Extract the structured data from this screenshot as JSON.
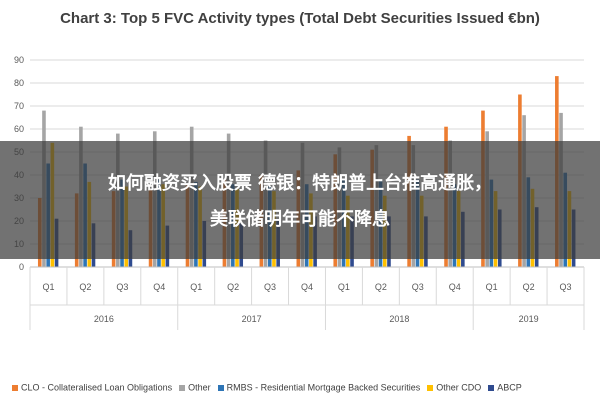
{
  "chart_data": {
    "type": "bar",
    "title": "Chart 3: Top 5 FVC Activity types (Total Debt Securities Issued €bn)",
    "xlabel": "",
    "ylabel": "",
    "ylim": [
      0,
      90
    ],
    "yticks": [
      0,
      10,
      20,
      30,
      40,
      50,
      60,
      70,
      80,
      90
    ],
    "grid": true,
    "legend_position": "bottom",
    "categories": [
      "Q1",
      "Q2",
      "Q3",
      "Q4",
      "Q1",
      "Q2",
      "Q3",
      "Q4",
      "Q1",
      "Q2",
      "Q3",
      "Q4",
      "Q1",
      "Q2",
      "Q3"
    ],
    "years": [
      {
        "label": "2016",
        "quarters": 4
      },
      {
        "label": "2017",
        "quarters": 4
      },
      {
        "label": "2018",
        "quarters": 4
      },
      {
        "label": "2019",
        "quarters": 3
      }
    ],
    "series": [
      {
        "name": "CLO - Collateralised Loan Obligations",
        "color": "#ed7d31",
        "values": [
          30,
          32,
          33,
          34,
          36,
          38,
          40,
          42,
          49,
          51,
          57,
          61,
          68,
          75,
          83
        ]
      },
      {
        "name": "Other",
        "color": "#a5a5a5",
        "values": [
          68,
          61,
          58,
          59,
          61,
          58,
          55,
          54,
          52,
          53,
          53,
          55,
          59,
          66,
          67
        ]
      },
      {
        "name": "RMBS - Residential Mortgage Backed Securities",
        "color": "#2e75b6",
        "values": [
          45,
          45,
          38,
          38,
          37,
          36,
          35,
          36,
          38,
          38,
          38,
          36,
          38,
          39,
          41
        ]
      },
      {
        "name": "Other CDO",
        "color": "#ffc000",
        "values": [
          54,
          37,
          35,
          36,
          35,
          34,
          33,
          32,
          31,
          31,
          31,
          33,
          33,
          34,
          33
        ]
      },
      {
        "name": "ABCP",
        "color": "#2f4b8f",
        "values": [
          21,
          19,
          16,
          18,
          20,
          19,
          20,
          22,
          22,
          22,
          22,
          24,
          25,
          26,
          25
        ]
      }
    ]
  },
  "overlay": {
    "line1": "如何融资买入股票 德银：特朗普上台推高通胀，",
    "line2": "美联储明年可能不降息"
  }
}
